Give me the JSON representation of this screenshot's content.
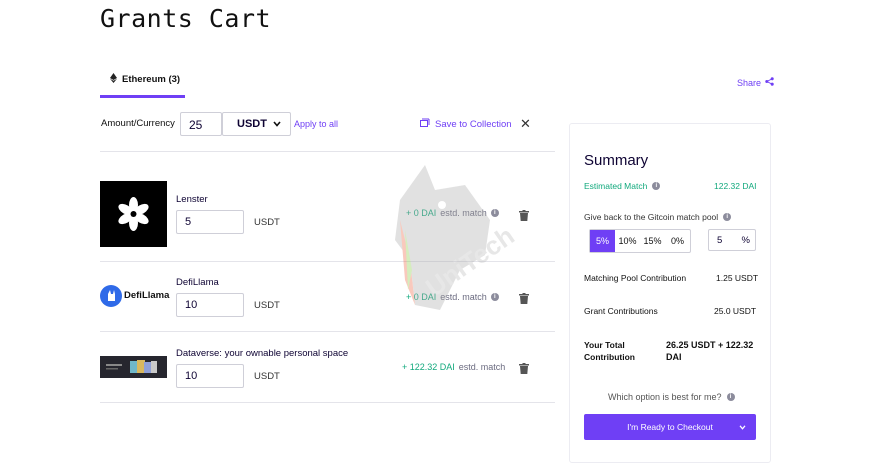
{
  "page": {
    "title": "Grants Cart"
  },
  "tabs": [
    {
      "label": "Ethereum (3)",
      "active": true
    }
  ],
  "share_label": "Share",
  "toolbar": {
    "amount_label": "Amount/Currency",
    "amount_value": "25",
    "currency": "USDT",
    "apply_label": "Apply to all",
    "save_label": "Save to Collection"
  },
  "grants": [
    {
      "name": "Lenster",
      "amount": "5",
      "currency": "USDT",
      "match_value": "+ 0 DAI",
      "match_text": "estd. match"
    },
    {
      "name": "DefiLlama",
      "logo_text": "DefiLlama",
      "amount": "10",
      "currency": "USDT",
      "match_value": "+ 0 DAI",
      "match_text": "estd. match"
    },
    {
      "name": "Dataverse: your ownable personal space",
      "amount": "10",
      "currency": "USDT",
      "match_value": "+ 122.32 DAI",
      "match_text": "estd. match"
    }
  ],
  "summary": {
    "title": "Summary",
    "estimated_match_label": "Estimated Match",
    "estimated_match_value": "122.32 DAI",
    "give_back_label": "Give back to the Gitcoin match pool",
    "percent_options": [
      "5%",
      "10%",
      "15%",
      "0%"
    ],
    "selected_percent": "5%",
    "custom_percent_value": "5",
    "custom_percent_unit": "%",
    "matching_pool_label": "Matching Pool Contribution",
    "matching_pool_value": "1.25 USDT",
    "grant_contrib_label": "Grant Contributions",
    "grant_contrib_value": "25.0 USDT",
    "total_label": "Your Total Contribution",
    "total_value": "26.25 USDT + 122.32 DAI",
    "which_option": "Which option is best for me?",
    "checkout_label": "I'm Ready to Checkout"
  },
  "watermark": "UniTech",
  "colors": {
    "accent": "#6f3ff5",
    "match_green": "#12a97d"
  }
}
